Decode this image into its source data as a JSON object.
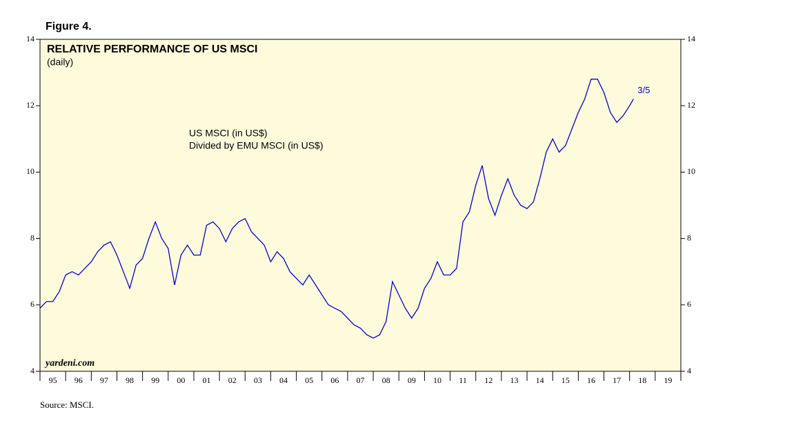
{
  "figure_label": "Figure 4.",
  "source": "Source: MSCI.",
  "chart_data": {
    "type": "line",
    "title": "RELATIVE PERFORMANCE OF US MSCI",
    "subtitle": "(daily)",
    "annotations": [
      "US MSCI (in US$)",
      "Divided by EMU MSCI (in US$)"
    ],
    "watermark": "yardeni.com",
    "end_label": "3/5",
    "background": "#fefbdc",
    "xlim": [
      1995,
      2020
    ],
    "xticks": [
      {
        "value": 1995,
        "label": "95"
      },
      {
        "value": 1996,
        "label": "96"
      },
      {
        "value": 1997,
        "label": "97"
      },
      {
        "value": 1998,
        "label": "98"
      },
      {
        "value": 1999,
        "label": "99"
      },
      {
        "value": 2000,
        "label": "00"
      },
      {
        "value": 2001,
        "label": "01"
      },
      {
        "value": 2002,
        "label": "02"
      },
      {
        "value": 2003,
        "label": "03"
      },
      {
        "value": 2004,
        "label": "04"
      },
      {
        "value": 2005,
        "label": "05"
      },
      {
        "value": 2006,
        "label": "06"
      },
      {
        "value": 2007,
        "label": "07"
      },
      {
        "value": 2008,
        "label": "08"
      },
      {
        "value": 2009,
        "label": "09"
      },
      {
        "value": 2010,
        "label": "10"
      },
      {
        "value": 2011,
        "label": "11"
      },
      {
        "value": 2012,
        "label": "12"
      },
      {
        "value": 2013,
        "label": "13"
      },
      {
        "value": 2014,
        "label": "14"
      },
      {
        "value": 2015,
        "label": "15"
      },
      {
        "value": 2016,
        "label": "16"
      },
      {
        "value": 2017,
        "label": "17"
      },
      {
        "value": 2018,
        "label": "18"
      },
      {
        "value": 2019,
        "label": "19"
      }
    ],
    "ylim": [
      4,
      14
    ],
    "yticks": [
      4,
      6,
      8,
      10,
      12,
      14
    ],
    "x": [
      1995.0,
      1995.25,
      1995.5,
      1995.75,
      1996.0,
      1996.25,
      1996.5,
      1996.75,
      1997.0,
      1997.25,
      1997.5,
      1997.75,
      1998.0,
      1998.25,
      1998.5,
      1998.75,
      1999.0,
      1999.25,
      1999.5,
      1999.75,
      2000.0,
      2000.25,
      2000.5,
      2000.75,
      2001.0,
      2001.25,
      2001.5,
      2001.75,
      2002.0,
      2002.25,
      2002.5,
      2002.75,
      2003.0,
      2003.25,
      2003.5,
      2003.75,
      2004.0,
      2004.25,
      2004.5,
      2004.75,
      2005.0,
      2005.25,
      2005.5,
      2005.75,
      2006.0,
      2006.25,
      2006.5,
      2006.75,
      2007.0,
      2007.25,
      2007.5,
      2007.75,
      2008.0,
      2008.25,
      2008.5,
      2008.75,
      2009.0,
      2009.25,
      2009.5,
      2009.75,
      2010.0,
      2010.25,
      2010.5,
      2010.75,
      2011.0,
      2011.25,
      2011.5,
      2011.75,
      2012.0,
      2012.25,
      2012.5,
      2012.75,
      2013.0,
      2013.25,
      2013.5,
      2013.75,
      2014.0,
      2014.25,
      2014.5,
      2014.75,
      2015.0,
      2015.25,
      2015.5,
      2015.75,
      2016.0,
      2016.25,
      2016.5,
      2016.75,
      2017.0,
      2017.25,
      2017.5,
      2017.75,
      2018.0,
      2018.15
    ],
    "series": [
      {
        "color": "#0000dd",
        "values": [
          5.9,
          6.1,
          6.1,
          6.4,
          6.9,
          7.0,
          6.9,
          7.1,
          7.3,
          7.6,
          7.8,
          7.9,
          7.5,
          7.0,
          6.5,
          7.2,
          7.4,
          8.0,
          8.5,
          8.0,
          7.7,
          6.6,
          7.5,
          7.8,
          7.5,
          7.5,
          8.4,
          8.5,
          8.3,
          7.9,
          8.3,
          8.5,
          8.6,
          8.2,
          8.0,
          7.8,
          7.3,
          7.6,
          7.4,
          7.0,
          6.8,
          6.6,
          6.9,
          6.6,
          6.3,
          6.0,
          5.9,
          5.8,
          5.6,
          5.4,
          5.3,
          5.1,
          5.0,
          5.1,
          5.5,
          6.7,
          6.3,
          5.9,
          5.6,
          5.9,
          6.5,
          6.8,
          7.3,
          6.9,
          6.9,
          7.1,
          8.5,
          8.8,
          9.6,
          10.2,
          9.2,
          8.7,
          9.3,
          9.8,
          9.3,
          9.0,
          8.9,
          9.1,
          9.8,
          10.6,
          11.0,
          10.6,
          10.8,
          11.3,
          11.8,
          12.2,
          12.8,
          12.8,
          12.4,
          11.8,
          11.5,
          11.7,
          12.0,
          12.2
        ]
      }
    ]
  }
}
